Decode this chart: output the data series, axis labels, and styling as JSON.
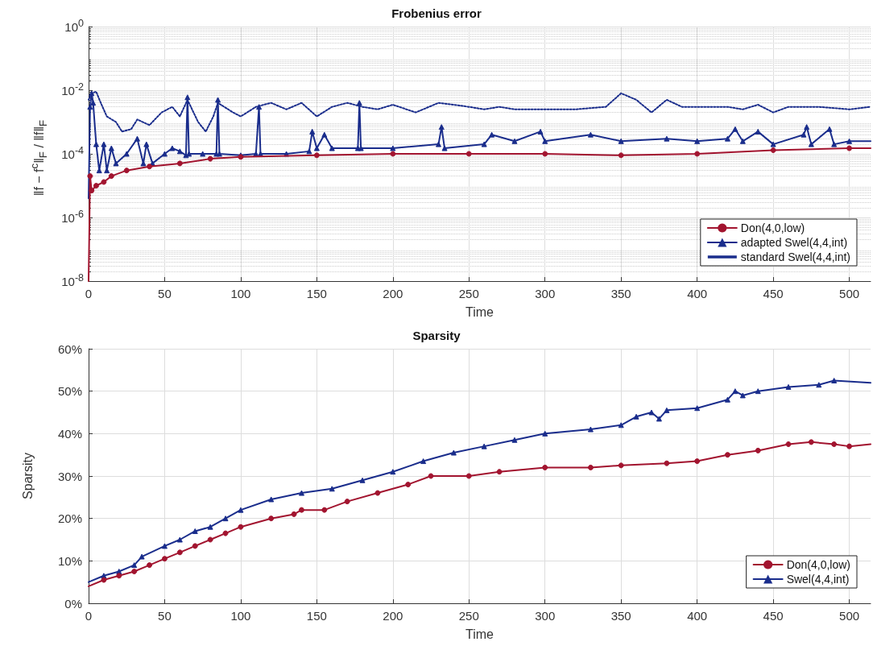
{
  "chart_data": [
    {
      "type": "line",
      "title": "Frobenius error",
      "xlabel": "Time",
      "ylabel": "‖f − f$^{c}$‖$_{F}$ / ‖f‖$_{F}$",
      "log": "y",
      "grid": true,
      "legend": "bottom right",
      "xlim": [
        0,
        514
      ],
      "xticks": [
        0,
        50,
        100,
        150,
        200,
        250,
        300,
        350,
        400,
        450,
        500
      ],
      "ylim": [
        1e-08,
        1
      ],
      "yticks": [
        {
          "value": 1e-08,
          "label": "10$^{-8}$"
        },
        {
          "value": 1e-06,
          "label": "10$^{-6}$"
        },
        {
          "value": 0.0001,
          "label": "10$^{-4}$"
        },
        {
          "value": 0.01,
          "label": "10$^{-2}$"
        },
        {
          "value": 1,
          "label": "10$^{0}$"
        }
      ],
      "series": [
        {
          "name": "Don(4,0,low)",
          "color": "#a2142f",
          "marker": "circle",
          "line_style": "solid",
          "x": [
            0,
            1,
            2,
            5,
            10,
            15,
            25,
            40,
            60,
            80,
            100,
            150,
            200,
            250,
            300,
            350,
            400,
            450,
            500,
            514
          ],
          "values": [
            1e-08,
            2e-05,
            7e-06,
            1e-05,
            1.3e-05,
            2e-05,
            3e-05,
            4e-05,
            5e-05,
            7e-05,
            8e-05,
            9e-05,
            0.0001,
            0.0001,
            0.0001,
            9e-05,
            0.0001,
            0.00013,
            0.00015,
            0.00015
          ]
        },
        {
          "name": "adapted Swel(4,4,int)",
          "color": "#1a2d8c",
          "marker": "triangle",
          "line_style": "solid",
          "x": [
            0,
            1,
            2,
            3,
            5,
            7,
            10,
            12,
            15,
            18,
            25,
            32,
            36,
            38,
            42,
            50,
            55,
            60,
            64,
            65,
            66,
            75,
            84,
            85,
            86,
            100,
            110,
            112,
            113,
            130,
            145,
            147,
            150,
            155,
            160,
            177,
            178,
            179,
            200,
            230,
            232,
            234,
            260,
            265,
            280,
            297,
            300,
            330,
            350,
            380,
            400,
            420,
            425,
            430,
            440,
            450,
            470,
            472,
            475,
            487,
            490,
            500,
            514
          ],
          "values": [
            4e-06,
            0.003,
            0.008,
            0.004,
            0.0002,
            3e-05,
            0.0002,
            3e-05,
            0.00015,
            5e-05,
            0.0001,
            0.0003,
            5e-05,
            0.0002,
            5e-05,
            0.0001,
            0.00015,
            0.00012,
            9e-05,
            0.006,
            0.0001,
            0.0001,
            0.0001,
            0.005,
            0.0001,
            9e-05,
            0.0001,
            0.003,
            0.0001,
            0.0001,
            0.00012,
            0.0005,
            0.00015,
            0.0004,
            0.00015,
            0.00015,
            0.004,
            0.00015,
            0.00015,
            0.0002,
            0.0007,
            0.00015,
            0.0002,
            0.0004,
            0.00025,
            0.0005,
            0.00025,
            0.0004,
            0.00025,
            0.0003,
            0.00025,
            0.0003,
            0.0006,
            0.00025,
            0.0005,
            0.0002,
            0.0004,
            0.0007,
            0.0002,
            0.0006,
            0.0002,
            0.00025,
            0.00025
          ]
        },
        {
          "name": "standard Swel(4,4,int)",
          "color": "#1a2d8c",
          "marker": "none",
          "line_style": "dotted",
          "x": [
            0,
            2,
            5,
            8,
            12,
            18,
            22,
            28,
            32,
            40,
            48,
            55,
            60,
            65,
            72,
            77,
            82,
            85,
            95,
            100,
            110,
            120,
            130,
            140,
            150,
            160,
            170,
            180,
            190,
            200,
            215,
            230,
            240,
            250,
            260,
            270,
            280,
            300,
            320,
            340,
            350,
            360,
            370,
            380,
            390,
            400,
            420,
            430,
            440,
            450,
            460,
            480,
            500,
            514
          ],
          "values": [
            0.005,
            0.008,
            0.009,
            0.004,
            0.0015,
            0.001,
            0.0005,
            0.0006,
            0.0012,
            0.0008,
            0.002,
            0.003,
            0.0015,
            0.005,
            0.001,
            0.0005,
            0.0015,
            0.004,
            0.002,
            0.0015,
            0.003,
            0.004,
            0.0025,
            0.004,
            0.0015,
            0.003,
            0.004,
            0.003,
            0.0025,
            0.0035,
            0.002,
            0.004,
            0.0035,
            0.003,
            0.0025,
            0.003,
            0.0025,
            0.0025,
            0.0025,
            0.003,
            0.008,
            0.005,
            0.002,
            0.005,
            0.003,
            0.003,
            0.003,
            0.0025,
            0.0035,
            0.002,
            0.003,
            0.003,
            0.0025,
            0.003
          ]
        }
      ]
    },
    {
      "type": "line",
      "title": "Sparsity",
      "xlabel": "Time",
      "ylabel": "Sparsity",
      "grid": true,
      "legend": "bottom right",
      "xlim": [
        0,
        514
      ],
      "xticks": [
        0,
        50,
        100,
        150,
        200,
        250,
        300,
        350,
        400,
        450,
        500
      ],
      "ylim": [
        0,
        60
      ],
      "yticks": [
        {
          "value": 0,
          "label": "0%"
        },
        {
          "value": 10,
          "label": "10%"
        },
        {
          "value": 20,
          "label": "20%"
        },
        {
          "value": 30,
          "label": "30%"
        },
        {
          "value": 40,
          "label": "40%"
        },
        {
          "value": 50,
          "label": "50%"
        },
        {
          "value": 60,
          "label": "60%"
        }
      ],
      "series": [
        {
          "name": "Don(4,0,low)",
          "color": "#a2142f",
          "marker": "circle",
          "line_style": "solid",
          "x": [
            0,
            10,
            20,
            30,
            40,
            50,
            60,
            70,
            80,
            90,
            100,
            120,
            135,
            140,
            155,
            170,
            190,
            210,
            225,
            250,
            270,
            300,
            330,
            350,
            380,
            400,
            420,
            440,
            460,
            475,
            490,
            500,
            514
          ],
          "values": [
            4,
            5.5,
            6.5,
            7.5,
            9,
            10.5,
            12,
            13.5,
            15,
            16.5,
            18,
            20,
            21,
            22,
            22,
            24,
            26,
            28,
            30,
            30,
            31,
            32,
            32,
            32.5,
            33,
            33.5,
            35,
            36,
            37.5,
            38,
            37.5,
            37,
            37.5
          ]
        },
        {
          "name": "Swel(4,4,int)",
          "color": "#1a2d8c",
          "marker": "triangle",
          "line_style": "solid",
          "x": [
            0,
            10,
            20,
            30,
            35,
            50,
            60,
            70,
            80,
            90,
            100,
            120,
            140,
            160,
            180,
            200,
            220,
            240,
            260,
            280,
            300,
            330,
            350,
            360,
            370,
            375,
            380,
            400,
            420,
            425,
            430,
            440,
            460,
            480,
            490,
            514
          ],
          "values": [
            5,
            6.5,
            7.5,
            9,
            11,
            13.5,
            15,
            17,
            18,
            20,
            22,
            24.5,
            26,
            27,
            29,
            31,
            33.5,
            35.5,
            37,
            38.5,
            40,
            41,
            42,
            44,
            45,
            43.5,
            45.5,
            46,
            48,
            50,
            49,
            50,
            51,
            51.5,
            52.5,
            52
          ]
        }
      ]
    }
  ]
}
